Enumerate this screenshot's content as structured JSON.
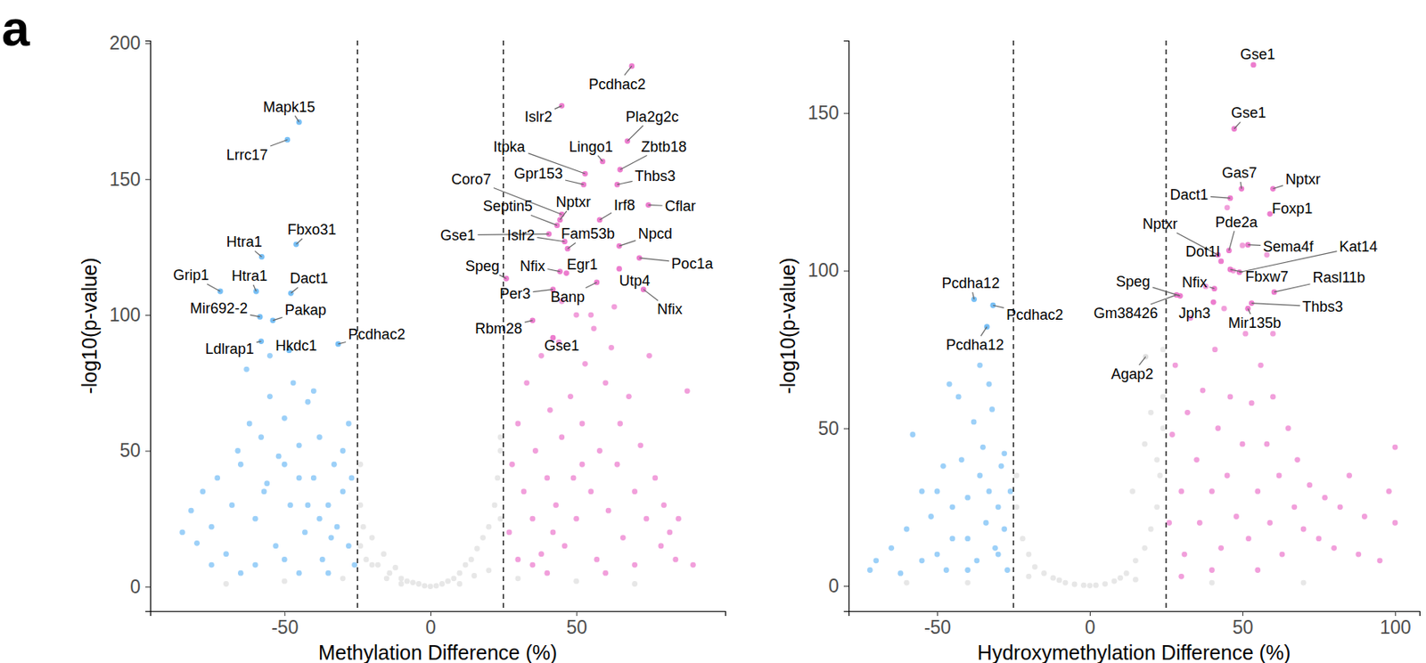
{
  "panel_label": "a",
  "chart_data": [
    {
      "type": "scatter",
      "xlabel": "Methylation Difference (%)",
      "ylabel": "-log10(p-value)",
      "xlim": [
        -96,
        101
      ],
      "ylim": [
        -9,
        201
      ],
      "xticks": [
        -50,
        0,
        50
      ],
      "yticks": [
        0,
        50,
        100,
        150,
        200
      ],
      "thresholds": [
        -25,
        25
      ],
      "series": [
        {
          "color": "#4aaaf2",
          "x": [
            -85,
            -82,
            -80,
            -78,
            -75,
            -73,
            -70,
            -68,
            -66,
            -65,
            -62,
            -60,
            -58,
            -56,
            -55,
            -53,
            -52,
            -50,
            -48,
            -47,
            -45,
            -43,
            -42,
            -40,
            -38,
            -37,
            -35,
            -33,
            -32,
            -30,
            -28,
            -27,
            -26,
            -60,
            -45,
            -35,
            -50,
            -65,
            -75,
            -28,
            -40,
            -55,
            -63,
            -30,
            -45,
            -50,
            -57,
            -42,
            -38,
            -34
          ],
          "values": [
            20,
            28,
            16,
            35,
            22,
            40,
            12,
            30,
            50,
            45,
            60,
            25,
            55,
            38,
            70,
            15,
            48,
            62,
            30,
            75,
            52,
            20,
            68,
            40,
            55,
            10,
            30,
            45,
            22,
            35,
            15,
            40,
            8,
            8,
            5,
            5,
            10,
            5,
            8,
            60,
            72,
            85,
            80,
            50,
            40,
            45,
            35,
            30,
            25,
            18
          ]
        },
        {
          "color": "#d3d3d3",
          "x": [
            -24,
            -24,
            -23,
            -22,
            -20,
            -18,
            -16,
            -14,
            -12,
            -10,
            -8,
            -6,
            -4,
            -2,
            0,
            2,
            4,
            6,
            8,
            10,
            12,
            14,
            16,
            18,
            20,
            22,
            23,
            24,
            24,
            -20,
            -15,
            15,
            20,
            -30,
            -50,
            -70,
            30,
            50,
            70,
            -24,
            10,
            -10,
            24
          ],
          "values": [
            30,
            15,
            22,
            10,
            18,
            8,
            12,
            5,
            7,
            3,
            2,
            1.5,
            1,
            0.3,
            0.1,
            0.3,
            1,
            2,
            3,
            5,
            8,
            10,
            14,
            18,
            22,
            30,
            40,
            50,
            25,
            8,
            3,
            4,
            6,
            3,
            2,
            1,
            3,
            2,
            1,
            45,
            1,
            1,
            55
          ]
        },
        {
          "color": "#e651bd",
          "x": [
            27,
            28,
            30,
            30,
            32,
            33,
            35,
            36,
            38,
            38,
            40,
            41,
            43,
            44,
            45,
            46,
            48,
            49,
            50,
            50,
            52,
            53,
            55,
            56,
            57,
            58,
            60,
            61,
            62,
            64,
            65,
            66,
            68,
            70,
            72,
            74,
            75,
            77,
            79,
            80,
            82,
            85,
            88,
            84,
            90,
            60,
            40,
            35,
            70,
            55,
            45,
            63,
            52,
            42
          ],
          "values": [
            20,
            45,
            60,
            10,
            35,
            75,
            25,
            50,
            85,
            12,
            40,
            65,
            30,
            90,
            55,
            15,
            70,
            40,
            100,
            25,
            60,
            82,
            35,
            95,
            10,
            50,
            75,
            28,
            88,
            45,
            60,
            18,
            70,
            35,
            52,
            25,
            85,
            40,
            15,
            30,
            20,
            25,
            72,
            10,
            8,
            5,
            5,
            8,
            8,
            100,
            105,
            103,
            45,
            20
          ]
        }
      ],
      "annotations": [
        {
          "text": "Pcdhac2",
          "x": 69,
          "y": 191.6,
          "text_x": 64,
          "text_y": 185
        },
        {
          "text": "Islr2",
          "x": 45,
          "y": 177,
          "text_x": 37,
          "text_y": 173
        },
        {
          "text": "Pla2g2c",
          "x": 67.5,
          "y": 164,
          "text_x": 76,
          "text_y": 173
        },
        {
          "text": "Lingo1",
          "x": 59,
          "y": 156.5,
          "text_x": 55,
          "text_y": 162
        },
        {
          "text": "Zbtb18",
          "x": 65,
          "y": 153.5,
          "text_x": 80,
          "text_y": 162
        },
        {
          "text": "Itpka",
          "x": 53,
          "y": 152,
          "text_x": 27,
          "text_y": 162
        },
        {
          "text": "Thbs3",
          "x": 64,
          "y": 148,
          "text_x": 77,
          "text_y": 151
        },
        {
          "text": "Gpr153",
          "x": 52.5,
          "y": 148,
          "text_x": 37,
          "text_y": 152
        },
        {
          "text": "Coro7",
          "x": 45,
          "y": 137,
          "text_x": 14,
          "text_y": 150
        },
        {
          "text": "Nptxr",
          "x": 44.4,
          "y": 135,
          "text_x": 49,
          "text_y": 141.5
        },
        {
          "text": "Septin5",
          "x": 43.4,
          "y": 133,
          "text_x": 26.5,
          "text_y": 140
        },
        {
          "text": "Irf8",
          "x": 58,
          "y": 135,
          "text_x": 66.5,
          "text_y": 140.5
        },
        {
          "text": "Cflar",
          "x": 74.7,
          "y": 140.5,
          "text_x": 85.6,
          "text_y": 140
        },
        {
          "text": "Gse1",
          "x": 40.6,
          "y": 129.8,
          "text_x": 9.4,
          "text_y": 129.4
        },
        {
          "text": "Islr2",
          "x": 46,
          "y": 127,
          "text_x": 31,
          "text_y": 129.4
        },
        {
          "text": "Fam53b",
          "x": 47,
          "y": 124.4,
          "text_x": 54,
          "text_y": 129.8
        },
        {
          "text": "Npcd",
          "x": 64.7,
          "y": 125.4,
          "text_x": 77,
          "text_y": 129.8
        },
        {
          "text": "Speg",
          "x": 26,
          "y": 113.4,
          "text_x": 17.8,
          "text_y": 118
        },
        {
          "text": "Nfix",
          "x": 44.4,
          "y": 116,
          "text_x": 35,
          "text_y": 118
        },
        {
          "text": "Egr1",
          "x": 46.6,
          "y": 115.4,
          "text_x": 52,
          "text_y": 118.7
        },
        {
          "text": "Poc1a",
          "x": 71.6,
          "y": 121,
          "text_x": 89.7,
          "text_y": 119
        },
        {
          "text": "Utp4",
          "x": 64.7,
          "y": 117,
          "text_x": 70,
          "text_y": 112.7
        },
        {
          "text": "Per3",
          "x": 42,
          "y": 109.4,
          "text_x": 29,
          "text_y": 107.7
        },
        {
          "text": "Banp",
          "x": 57,
          "y": 112,
          "text_x": 47,
          "text_y": 106.7
        },
        {
          "text": "Nfix",
          "x": 73,
          "y": 109.4,
          "text_x": 82,
          "text_y": 102
        },
        {
          "text": "Rbm28",
          "x": 35,
          "y": 98,
          "text_x": 23.4,
          "text_y": 95
        },
        {
          "text": "Gse1",
          "x": 42,
          "y": 91.6,
          "text_x": 45,
          "text_y": 88.6
        },
        {
          "text": "Mapk15",
          "x": -45,
          "y": 171,
          "text_x": -48.4,
          "text_y": 176.6
        },
        {
          "text": "Lrrc17",
          "x": -49,
          "y": 164.5,
          "text_x": -62.8,
          "text_y": 159
        },
        {
          "text": "Fbxo31",
          "x": -46,
          "y": 126,
          "text_x": -40.6,
          "text_y": 131.4
        },
        {
          "text": "Htra1",
          "x": -57.8,
          "y": 121.4,
          "text_x": -63.8,
          "text_y": 126.8
        },
        {
          "text": "Grip1",
          "x": -72,
          "y": 108.7,
          "text_x": -82,
          "text_y": 114.7
        },
        {
          "text": "Htra1",
          "x": -59.7,
          "y": 108.7,
          "text_x": -62,
          "text_y": 114.4
        },
        {
          "text": "Dact1",
          "x": -47.8,
          "y": 108,
          "text_x": -41.6,
          "text_y": 113.4
        },
        {
          "text": "Mir692-2",
          "x": -58.4,
          "y": 99.3,
          "text_x": -72.5,
          "text_y": 102.3
        },
        {
          "text": "Pakap",
          "x": -54,
          "y": 98,
          "text_x": -42.8,
          "text_y": 101.7
        },
        {
          "text": "Pcdhac2",
          "x": -31.6,
          "y": 89.3,
          "text_x": -18.4,
          "text_y": 93
        },
        {
          "text": "Ldlrap1",
          "x": -58,
          "y": 90.3,
          "text_x": -68.8,
          "text_y": 87.6
        },
        {
          "text": "Hkdc1",
          "x": -48.4,
          "y": 87,
          "text_x": -46,
          "text_y": 88.6
        }
      ]
    },
    {
      "type": "scatter",
      "xlabel": "Hydroxymethylation Difference (%)",
      "ylabel": "-log10(p-value)",
      "xlim": [
        -79,
        108
      ],
      "ylim": [
        -8,
        173
      ],
      "xticks": [
        -50,
        0,
        50,
        100
      ],
      "yticks": [
        0,
        50,
        100,
        150
      ],
      "thresholds": [
        -25,
        25
      ],
      "series": [
        {
          "color": "#4aaaf2",
          "x": [
            -72,
            -70,
            -65,
            -60,
            -58,
            -55,
            -52,
            -50,
            -48,
            -46,
            -45,
            -43,
            -42,
            -40,
            -38,
            -37,
            -36,
            -35,
            -34,
            -33,
            -32,
            -31,
            -30,
            -29,
            -28,
            -27,
            -26,
            -40,
            -45,
            -50,
            -36,
            -33,
            -47,
            -55,
            -62,
            -40,
            -30,
            -28
          ],
          "values": [
            5,
            8,
            12,
            18,
            48,
            30,
            22,
            10,
            38,
            64,
            15,
            60,
            40,
            28,
            52,
            8,
            35,
            44,
            20,
            30,
            56,
            12,
            25,
            38,
            18,
            5,
            30,
            5,
            25,
            30,
            70,
            64,
            5,
            8,
            4,
            15,
            10,
            42
          ]
        },
        {
          "color": "#d3d3d3",
          "x": [
            -24,
            -22,
            -20,
            -18,
            -15,
            -12,
            -10,
            -8,
            -5,
            -2,
            0,
            2,
            5,
            8,
            10,
            12,
            15,
            18,
            20,
            22,
            23,
            24,
            24,
            18,
            20,
            -24,
            -20,
            15,
            -40,
            -60,
            40,
            70,
            24,
            14,
            22
          ],
          "values": [
            25,
            15,
            10,
            6,
            4,
            2.5,
            1.8,
            1,
            0.5,
            0.2,
            0.1,
            0.2,
            0.6,
            1.5,
            2.5,
            4,
            8,
            12,
            18,
            25,
            35,
            50,
            60,
            45,
            55,
            35,
            3,
            2,
            1,
            1,
            1,
            1,
            75,
            30,
            40
          ]
        },
        {
          "color": "#e651bd",
          "x": [
            26,
            27,
            28,
            30,
            31,
            32,
            33,
            35,
            36,
            37,
            38,
            40,
            41,
            42,
            43,
            44,
            45,
            46,
            47,
            48,
            50,
            51,
            52,
            53,
            55,
            56,
            58,
            59,
            60,
            62,
            63,
            65,
            67,
            68,
            70,
            72,
            75,
            77,
            80,
            82,
            85,
            88,
            90,
            95,
            100,
            100,
            98,
            55,
            40,
            30,
            60,
            50,
            45,
            58
          ],
          "values": [
            20,
            48,
            70,
            30,
            10,
            55,
            85,
            40,
            20,
            62,
            95,
            30,
            75,
            50,
            12,
            88,
            35,
            60,
            100,
            22,
            45,
            80,
            15,
            58,
            30,
            70,
            45,
            20,
            60,
            35,
            10,
            50,
            25,
            40,
            18,
            32,
            15,
            28,
            12,
            25,
            35,
            10,
            22,
            8,
            20,
            44,
            30,
            5,
            5,
            3,
            80,
            108,
            120,
            105
          ]
        }
      ],
      "annotations": [
        {
          "text": "Gse1",
          "x": 53.6,
          "y": 165.3,
          "text_x": 55,
          "text_y": 168.7
        },
        {
          "text": "Gse1",
          "x": 47.3,
          "y": 145,
          "text_x": 52,
          "text_y": 150
        },
        {
          "text": "Gas7",
          "x": 49.7,
          "y": 126,
          "text_x": 49,
          "text_y": 131
        },
        {
          "text": "Nptxr",
          "x": 60,
          "y": 126,
          "text_x": 69.8,
          "text_y": 129
        },
        {
          "text": "Dact1",
          "x": 46,
          "y": 123,
          "text_x": 32.5,
          "text_y": 124
        },
        {
          "text": "Foxp1",
          "x": 59,
          "y": 118,
          "text_x": 66.3,
          "text_y": 119.7
        },
        {
          "text": "Nptxr",
          "x": 42,
          "y": 105,
          "text_x": 23,
          "text_y": 114.8
        },
        {
          "text": "Pde2a",
          "x": 45.6,
          "y": 106.4,
          "text_x": 48,
          "text_y": 115.4
        },
        {
          "text": "Sema4f",
          "x": 51.8,
          "y": 108.2,
          "text_x": 65,
          "text_y": 107.6
        },
        {
          "text": "Kat14",
          "x": 49,
          "y": 99.5,
          "text_x": 88,
          "text_y": 107.6
        },
        {
          "text": "Dot1l",
          "x": 43,
          "y": 103,
          "text_x": 37,
          "text_y": 106
        },
        {
          "text": "Fbxw7",
          "x": 46,
          "y": 100.4,
          "text_x": 58,
          "text_y": 98
        },
        {
          "text": "Rasl11b",
          "x": 60.4,
          "y": 93.2,
          "text_x": 81.6,
          "text_y": 97.8
        },
        {
          "text": "Speg",
          "x": 29.6,
          "y": 92,
          "text_x": 14.2,
          "text_y": 96.6
        },
        {
          "text": "Nfix",
          "x": 40.8,
          "y": 94.3,
          "text_x": 34.3,
          "text_y": 96.3
        },
        {
          "text": "Pcdha12",
          "x": -37.9,
          "y": 90.9,
          "text_x": -39,
          "text_y": 96
        },
        {
          "text": "Pcdhac2",
          "x": -31.7,
          "y": 89,
          "text_x": -18,
          "text_y": 86
        },
        {
          "text": "Pcdha12",
          "x": -33.7,
          "y": 82.2,
          "text_x": -37.6,
          "text_y": 76.4
        },
        {
          "text": "Thbs3",
          "x": 53,
          "y": 89.7,
          "text_x": 76.3,
          "text_y": 88.5
        },
        {
          "text": "Gm38426",
          "x": 28.4,
          "y": 92.3,
          "text_x": 11.8,
          "text_y": 86.5
        },
        {
          "text": "Jph3",
          "x": 40.5,
          "y": 90,
          "text_x": 34.3,
          "text_y": 86.5
        },
        {
          "text": "Mir135b",
          "x": 51.8,
          "y": 88,
          "text_x": 54,
          "text_y": 83.4
        },
        {
          "text": "Agap2",
          "x": 18.3,
          "y": 72.7,
          "text_x": 13.9,
          "text_y": 67.2
        }
      ]
    }
  ]
}
